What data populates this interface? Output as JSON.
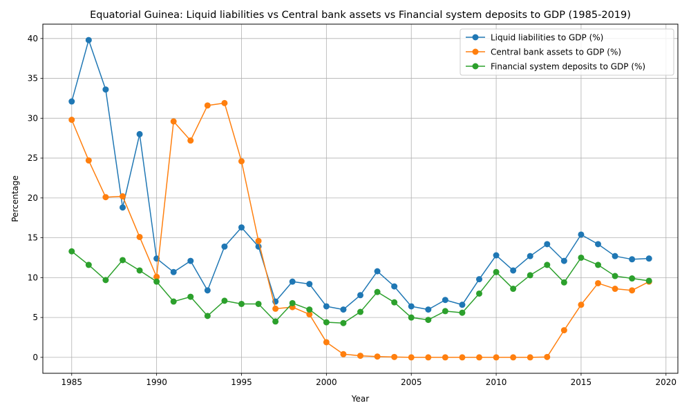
{
  "chart_data": {
    "type": "line",
    "title": "Equatorial Guinea: Liquid liabilities vs Central bank assets vs Financial system deposits to GDP (1985-2019)",
    "xlabel": "Year",
    "ylabel": "Percentage",
    "xlim": [
      1983.3,
      2020.7
    ],
    "ylim": [
      -2,
      41.8
    ],
    "xticks": [
      1985,
      1990,
      1995,
      2000,
      2005,
      2010,
      2015,
      2020
    ],
    "yticks": [
      0,
      5,
      10,
      15,
      20,
      25,
      30,
      35,
      40
    ],
    "grid": true,
    "legend_position": "top-right",
    "x": [
      1985,
      1986,
      1987,
      1988,
      1989,
      1990,
      1991,
      1992,
      1993,
      1994,
      1995,
      1996,
      1997,
      1998,
      1999,
      2000,
      2001,
      2002,
      2003,
      2004,
      2005,
      2006,
      2007,
      2008,
      2009,
      2010,
      2011,
      2012,
      2013,
      2014,
      2015,
      2016,
      2017,
      2018,
      2019
    ],
    "series": [
      {
        "name": "Liquid liabilities to GDP (%)",
        "color": "#1f77b4",
        "values": [
          32.1,
          39.8,
          33.6,
          18.8,
          28.0,
          12.4,
          10.7,
          12.1,
          8.4,
          13.9,
          16.3,
          13.9,
          7.0,
          9.5,
          9.2,
          6.4,
          6.0,
          7.8,
          10.8,
          8.9,
          6.4,
          6.0,
          7.2,
          6.6,
          9.8,
          12.8,
          10.9,
          12.7,
          14.2,
          12.1,
          15.4,
          14.2,
          12.7,
          12.3,
          12.4
        ]
      },
      {
        "name": "Central bank assets to GDP (%)",
        "color": "#ff7f0e",
        "values": [
          29.8,
          24.7,
          20.1,
          20.2,
          15.1,
          10.1,
          29.6,
          27.2,
          31.6,
          31.9,
          24.6,
          14.6,
          6.1,
          6.3,
          5.4,
          1.9,
          0.4,
          0.2,
          0.1,
          0.05,
          0.0,
          0.0,
          0.0,
          0.0,
          0.0,
          0.0,
          0.0,
          0.0,
          0.05,
          3.4,
          6.6,
          9.3,
          8.6,
          8.4,
          9.5
        ]
      },
      {
        "name": "Financial system deposits to GDP (%)",
        "color": "#2ca02c",
        "values": [
          13.3,
          11.6,
          9.7,
          12.2,
          10.9,
          9.5,
          7.0,
          7.6,
          5.2,
          7.1,
          6.7,
          6.7,
          4.5,
          6.8,
          6.0,
          4.4,
          4.3,
          5.7,
          8.2,
          6.9,
          5.0,
          4.7,
          5.8,
          5.6,
          8.0,
          10.7,
          8.6,
          10.3,
          11.6,
          9.4,
          12.5,
          11.6,
          10.2,
          9.9,
          9.6
        ]
      }
    ]
  }
}
